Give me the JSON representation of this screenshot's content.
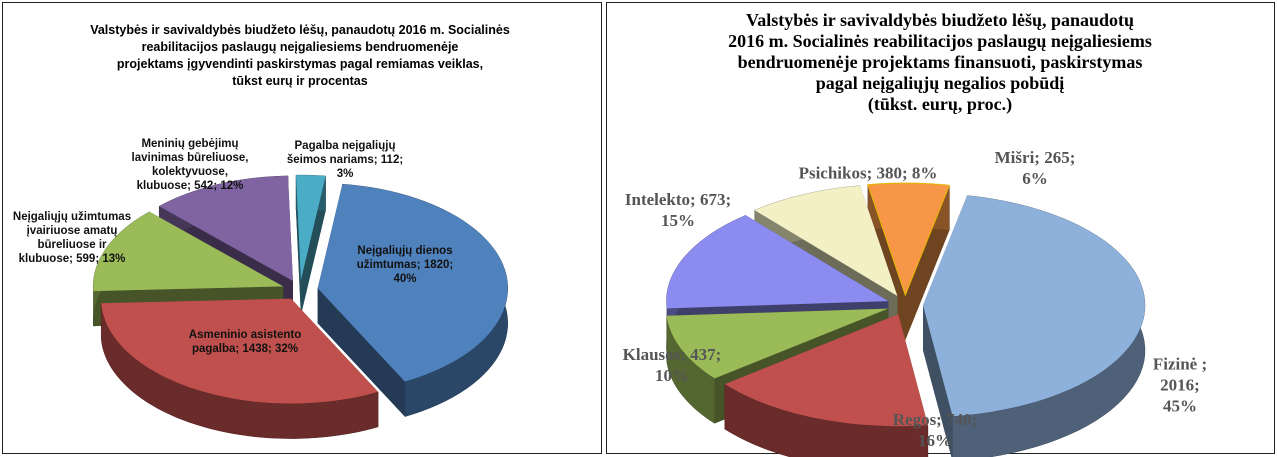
{
  "chart_data": [
    {
      "type": "pie",
      "title": "Valstybės ir savivaldybės biudžeto lėšų, panaudotų 2016 m. Socialinės\nreabilitacijos paslaugų neįgaliesiems bendruomenėje\nprojektams įgyvendinti paskirstymas pagal remiamas veiklas,\ntūkst eurų ir procentas",
      "values": [
        1820,
        1438,
        599,
        542,
        112
      ],
      "value_labels": [
        "Neįgaliųjų dienos\nužimtumas; 1820;\n40%",
        "Asmeninio asistento\npagalba; 1438; 32%",
        "Neįgaliųjų užimtumas\nįvairiuose amatų\nbūreliuose ir\nklubuose; 599; 13%",
        "Meninių gebėjimų\nlavinimas būreliuose,\nkolektyvuose,\nklubuose; 542; 12%",
        "Pagalba neįgaliųjų\nšeimos nariams; 112;\n3%"
      ],
      "colors": [
        "#4f81bd",
        "#c0504d",
        "#9bbb59",
        "#8064a2",
        "#4bacc6"
      ]
    },
    {
      "type": "pie",
      "title": "Valstybės ir savivaldybės biudžeto lėšų, panaudotų\n2016 m. Socialinės reabilitacijos paslaugų neįgaliesiems\nbendruomenėje projektams finansuoti, paskirstymas\npagal neįgaliųjų negalios pobūdį\n(tūkst. eurų, proc.)",
      "values": [
        2016,
        740,
        437,
        673,
        380,
        265
      ],
      "value_labels": [
        "Fizinė ; 2016;\n45%",
        "Regos; 740;\n16%",
        "Klausos; 437;\n10%",
        "Intelekto; 673;\n15%",
        "Psichikos; 380; 8%",
        "Mišri; 265;\n6%"
      ],
      "colors": [
        "#8eb1dc",
        "#c0504d",
        "#9bbb59",
        "#8b8bf0",
        "#f2f0c4",
        "#f79646"
      ]
    }
  ]
}
